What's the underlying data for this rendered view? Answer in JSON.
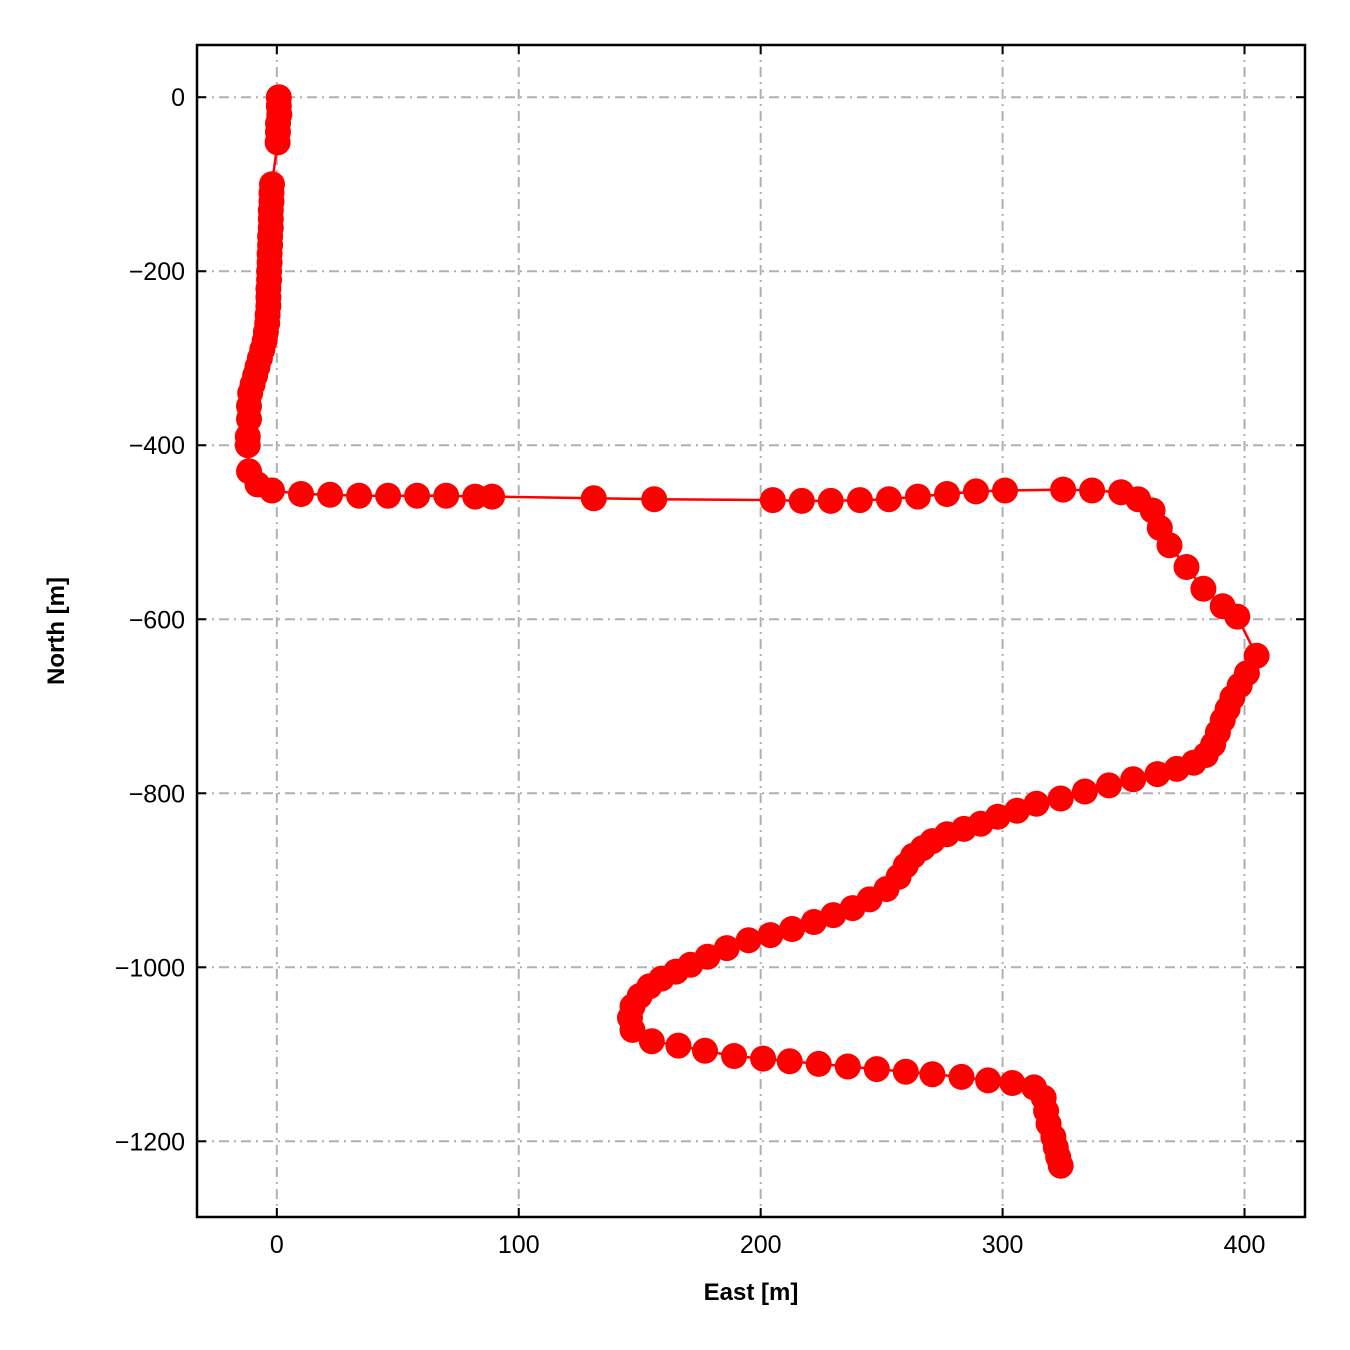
{
  "chart_data": {
    "type": "scatter",
    "xlabel": "East [m]",
    "ylabel": "North [m]",
    "xlim": [
      -33,
      425
    ],
    "ylim": [
      -1287,
      60
    ],
    "xticks": [
      0,
      100,
      200,
      300,
      400
    ],
    "yticks": [
      0,
      -200,
      -400,
      -600,
      -800,
      -1000,
      -1200
    ],
    "xtick_labels": [
      "0",
      "100",
      "200",
      "300",
      "400"
    ],
    "ytick_labels": [
      "0",
      "−200",
      "−400",
      "−600",
      "−800",
      "−1000",
      "−1200"
    ],
    "grid": true,
    "ticks_inward": true,
    "color": "#ff0000",
    "series": [
      {
        "x": [
          0.8,
          0.8,
          1.0,
          0.5,
          0.5,
          0.3,
          -2.0,
          -2.2,
          -2.2,
          -2.5,
          -2.5,
          -2.5,
          -2.8,
          -2.8,
          -3.0,
          -3.0,
          -3.2,
          -3.2,
          -3.5,
          -3.5,
          -3.5,
          -3.8,
          -4.0,
          -4.5,
          -5.0,
          -6.0,
          -7.0,
          -8.0,
          -9.0,
          -10.0,
          -11.0,
          -11.5,
          -11.5,
          -12.0,
          -12.0,
          -11.5,
          -8.0,
          -2.0,
          10,
          22,
          34,
          46,
          58,
          70,
          82,
          89,
          131,
          156,
          205,
          217,
          229,
          241,
          253,
          265,
          277,
          289,
          301,
          325,
          337,
          349,
          356,
          362,
          365,
          369,
          376,
          383,
          391,
          397,
          405,
          401,
          398,
          395,
          393,
          391,
          389,
          387,
          384,
          379,
          372,
          364,
          354,
          344,
          334,
          324,
          314,
          306,
          298,
          291,
          284,
          277,
          271,
          267,
          263,
          260,
          257,
          252,
          245,
          238,
          230,
          222,
          213,
          204,
          195,
          186,
          178,
          171,
          165,
          159,
          154,
          150,
          147,
          146,
          147,
          155,
          166,
          177,
          189,
          201,
          212,
          224,
          236,
          248,
          260,
          271,
          283,
          294,
          304,
          313,
          317,
          318,
          319,
          321,
          322,
          323,
          324
        ],
        "y": [
          0,
          -10,
          -20,
          -30,
          -40,
          -52,
          -100,
          -110,
          -120,
          -130,
          -140,
          -150,
          -160,
          -170,
          -180,
          -190,
          -200,
          -210,
          -220,
          -230,
          -240,
          -250,
          -260,
          -270,
          -280,
          -290,
          -300,
          -310,
          -320,
          -330,
          -340,
          -355,
          -370,
          -390,
          -400,
          -430,
          -445,
          -452,
          -456,
          -457,
          -458,
          -458,
          -458,
          -458,
          -459,
          -459,
          -461,
          -462,
          -463,
          -464,
          -464,
          -463,
          -462,
          -459,
          -456,
          -453,
          -452,
          -451,
          -452,
          -454,
          -462,
          -475,
          -495,
          -515,
          -540,
          -565,
          -585,
          -597,
          -642,
          -662,
          -676,
          -690,
          -703,
          -716,
          -730,
          -744,
          -756,
          -765,
          -772,
          -778,
          -784,
          -791,
          -798,
          -806,
          -812,
          -820,
          -827,
          -835,
          -841,
          -847,
          -855,
          -863,
          -872,
          -883,
          -896,
          -910,
          -922,
          -932,
          -940,
          -948,
          -956,
          -963,
          -969,
          -978,
          -988,
          -997,
          -1005,
          -1013,
          -1022,
          -1033,
          -1045,
          -1058,
          -1072,
          -1085,
          -1090,
          -1096,
          -1102,
          -1105,
          -1108,
          -1111,
          -1114,
          -1117,
          -1120,
          -1123,
          -1126,
          -1130,
          -1133,
          -1138,
          -1150,
          -1165,
          -1180,
          -1195,
          -1207,
          -1218,
          -1228
        ]
      }
    ]
  }
}
